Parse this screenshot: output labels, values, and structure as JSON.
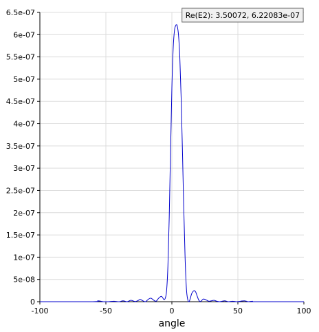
{
  "chart_data": {
    "type": "line",
    "title": "",
    "xlabel": "angle",
    "ylabel": "",
    "xlim": [
      -100,
      100
    ],
    "ylim": [
      0,
      6.5e-07
    ],
    "grid": true,
    "x_ticks": [
      -100,
      -50,
      0,
      50,
      100
    ],
    "x_tick_labels": [
      "-100",
      "-50",
      "0",
      "50",
      "100"
    ],
    "y_ticks": [
      0,
      5e-08,
      1e-07,
      1.5e-07,
      2e-07,
      2.5e-07,
      3e-07,
      3.5e-07,
      4e-07,
      4.5e-07,
      5e-07,
      5.5e-07,
      6e-07,
      6.5e-07
    ],
    "y_tick_labels": [
      "0",
      "5e-08",
      "1e-07",
      "1.5e-07",
      "2e-07",
      "2.5e-07",
      "3e-07",
      "3.5e-07",
      "4e-07",
      "4.5e-07",
      "5e-07",
      "5.5e-07",
      "6e-07",
      "6.5e-07"
    ],
    "series": [
      {
        "name": "Re(E2)",
        "color": "#0000cc",
        "x": [
          -100,
          -60,
          -56,
          -52,
          -48,
          -44,
          -40,
          -37,
          -34,
          -31,
          -28,
          -26,
          -24,
          -22,
          -20,
          -18,
          -16,
          -14,
          -12,
          -10,
          -8,
          -7,
          -6,
          -5,
          -4,
          -3,
          -2,
          -1,
          0,
          1,
          2,
          3,
          3.5,
          4,
          5,
          6,
          7,
          8,
          9,
          10,
          11,
          12,
          13,
          14,
          15,
          16,
          17,
          18,
          19,
          20,
          21,
          22,
          23,
          24,
          26,
          28,
          30,
          32,
          34,
          36,
          38,
          40,
          43,
          46,
          49,
          52,
          55,
          58,
          61,
          64,
          100
        ],
        "y": [
          0,
          0,
          2e-09,
          0,
          0,
          1e-09,
          0,
          2e-09,
          0,
          3e-09,
          5e-10,
          2e-09,
          5e-09,
          2e-09,
          0,
          5e-09,
          8e-09,
          4e-09,
          1e-09,
          8e-09,
          1.2e-08,
          9e-09,
          5e-09,
          8e-09,
          2.5e-08,
          8e-08,
          1.9e-07,
          3.4e-07,
          4.8e-07,
          5.7e-07,
          6.1e-07,
          6.21e-07,
          6.22e-07,
          6.2e-07,
          6e-07,
          5.5e-07,
          4.6e-07,
          3.4e-07,
          2.1e-07,
          1e-07,
          3e-08,
          5e-09,
          0,
          8e-09,
          1.8e-08,
          2.3e-08,
          2.5e-08,
          2.2e-08,
          1.4e-08,
          6e-09,
          1e-09,
          1e-09,
          4e-09,
          6e-09,
          4e-09,
          1e-09,
          2e-09,
          3e-09,
          1e-09,
          0,
          1e-09,
          2e-09,
          0,
          1e-09,
          0,
          1e-09,
          2e-09,
          0,
          1e-09,
          0,
          0
        ]
      }
    ],
    "annotation": {
      "text": "Re(E2): 3.50072,  6.22083e-07",
      "x": 3.50072,
      "y": 6.22083e-07
    }
  }
}
